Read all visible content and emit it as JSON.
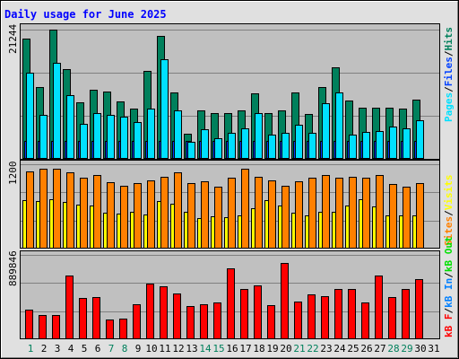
{
  "title": "Daily usage for June 2025",
  "colors": {
    "background": "#e0e0e0",
    "plot_background": "#c0c0c0",
    "title": "#0000ff",
    "hits": "#00805c",
    "files": "#0040ff",
    "pages": "#00e0ff",
    "visits": "#ffff00",
    "sites": "#ff8000",
    "kbytes": "#ff0000",
    "kb_in": "#0080ff",
    "kb_out": "#00e000"
  },
  "panels": {
    "hits": {
      "max_label": "21244",
      "legend": [
        {
          "text": "Hits",
          "color": "#00805c"
        },
        {
          "text": "/",
          "color": "#000000"
        },
        {
          "text": "Files",
          "color": "#0040ff"
        },
        {
          "text": "/",
          "color": "#000000"
        },
        {
          "text": "Pages",
          "color": "#00e0ff"
        }
      ]
    },
    "visits": {
      "max_label": "1200",
      "legend": [
        {
          "text": "Visits",
          "color": "#ffff00"
        },
        {
          "text": "/",
          "color": "#000000"
        },
        {
          "text": "Sites",
          "color": "#ff8000"
        }
      ]
    },
    "kbytes": {
      "max_label": "889846",
      "legend": [
        {
          "text": "kB Out",
          "color": "#00e000"
        },
        {
          "text": "/",
          "color": "#000000"
        },
        {
          "text": "kB In",
          "color": "#0080ff"
        },
        {
          "text": "/",
          "color": "#000000"
        },
        {
          "text": "kB F",
          "color": "#ff0000"
        }
      ]
    }
  },
  "chart_data": {
    "type": "bar",
    "title": "Daily usage for June 2025",
    "categories": [
      "1",
      "2",
      "3",
      "4",
      "5",
      "6",
      "7",
      "8",
      "9",
      "10",
      "11",
      "12",
      "13",
      "14",
      "15",
      "16",
      "17",
      "18",
      "19",
      "20",
      "21",
      "22",
      "23",
      "24",
      "25",
      "26",
      "27",
      "28",
      "29",
      "30",
      "31"
    ],
    "weekend_days": [
      "1",
      "7",
      "8",
      "14",
      "15",
      "21",
      "22",
      "28",
      "29"
    ],
    "panels": [
      {
        "name": "hits",
        "ylim": [
          0,
          21244
        ],
        "series": [
          {
            "name": "Hits",
            "values": [
              19700,
              11800,
              21244,
              14700,
              9200,
              11300,
              11000,
              9400,
              8200,
              14400,
              20200,
              10800,
              4000,
              7900,
              7400,
              7400,
              7900,
              10700,
              7400,
              7900,
              10800,
              7300,
              11800,
              15000,
              9500,
              8300,
              8300,
              8300,
              8100,
              9600,
              null
            ]
          },
          {
            "name": "Files",
            "values": [
              2800,
              2800,
              2800,
              2800,
              2800,
              2800,
              2800,
              2800,
              2800,
              2800,
              2800,
              2800,
              2800,
              2800,
              2800,
              2800,
              2800,
              2800,
              2800,
              2800,
              2800,
              2800,
              2800,
              2800,
              2800,
              2800,
              2800,
              2800,
              2800,
              2800,
              null
            ]
          },
          {
            "name": "Pages",
            "values": [
              14100,
              7200,
              15700,
              10400,
              5700,
              7500,
              7200,
              6900,
              5900,
              8100,
              16400,
              7800,
              2700,
              4700,
              3300,
              4100,
              4900,
              7400,
              3800,
              4200,
              5500,
              4100,
              9000,
              10800,
              3800,
              4300,
              4400,
              5200,
              4900,
              6200,
              null
            ]
          }
        ]
      },
      {
        "name": "visits",
        "ylim": [
          0,
          1200
        ],
        "series": [
          {
            "name": "Visits",
            "values": [
              680,
              670,
              690,
              660,
              620,
              600,
              500,
              490,
              510,
              480,
              670,
              630,
              510,
              420,
              450,
              440,
              470,
              570,
              680,
              600,
              500,
              470,
              520,
              520,
              600,
              690,
              590,
              470,
              470,
              470,
              null
            ]
          },
          {
            "name": "Sites",
            "values": [
              1100,
              1140,
              1140,
              1080,
              1010,
              1050,
              940,
              890,
              930,
              970,
              1020,
              1080,
              930,
              960,
              880,
              1010,
              1140,
              1020,
              970,
              890,
              960,
              1000,
              1050,
              1010,
              1020,
              1010,
              1050,
              920,
              880,
              930,
              null
            ]
          }
        ]
      },
      {
        "name": "kbytes",
        "ylim": [
          0,
          889846
        ],
        "series": [
          {
            "name": "kB F",
            "values": [
              310000,
              250000,
              250000,
              670000,
              430000,
              440000,
              200000,
              210000,
              360000,
              580000,
              550000,
              480000,
              340000,
              360000,
              380000,
              750000,
              530000,
              560000,
              350000,
              800000,
              390000,
              470000,
              450000,
              530000,
              530000,
              380000,
              670000,
              440000,
              530000,
              630000,
              null
            ]
          }
        ]
      }
    ]
  }
}
